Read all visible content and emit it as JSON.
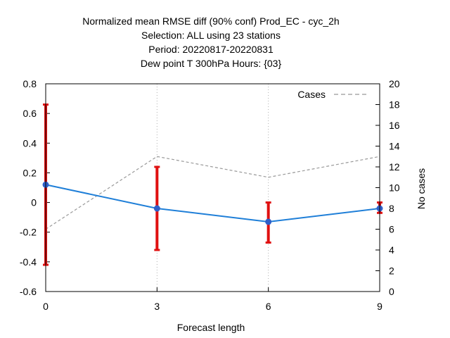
{
  "chart_data": {
    "type": "line",
    "title_lines": [
      "Normalized mean RMSE diff (90% conf) Prod_EC - cyc_2h",
      "Selection: ALL using    23 stations",
      "Period: 20220817-20220831",
      "Dew point T 300hPa   Hours: {03}"
    ],
    "xlabel": "Forecast length",
    "ylabel": "",
    "y2label": "No cases",
    "x": [
      0,
      3,
      6,
      9
    ],
    "xlim": [
      0,
      9
    ],
    "ylim": [
      -0.6,
      0.8
    ],
    "y2lim": [
      0,
      20
    ],
    "x_ticks": [
      0,
      3,
      6,
      9
    ],
    "x_tick_labels": [
      "0",
      "3",
      "6",
      "9"
    ],
    "y_ticks": [
      -0.6,
      -0.4,
      -0.2,
      0,
      0.2,
      0.4,
      0.6,
      0.8
    ],
    "y_tick_labels": [
      "-0.6",
      "-0.4",
      "-0.2",
      "0",
      "0.2",
      "0.4",
      "0.6",
      "0.8"
    ],
    "y2_ticks": [
      0,
      2,
      4,
      6,
      8,
      10,
      12,
      14,
      16,
      18,
      20
    ],
    "y2_tick_labels": [
      "0",
      "2",
      "4",
      "6",
      "8",
      "10",
      "12",
      "14",
      "16",
      "18",
      "20"
    ],
    "grid": {
      "x": true,
      "y": false
    },
    "legend_placement": "top-right",
    "series": [
      {
        "values": [
          0.12,
          -0.04,
          -0.13,
          -0.04
        ],
        "err_low": [
          -0.42,
          -0.32,
          -0.27,
          -0.07
        ],
        "err_high": [
          0.66,
          0.24,
          0.0,
          0.0
        ],
        "color": "#1f7fd8",
        "err_color": "#e01010",
        "axis": "left"
      },
      {
        "name": "Cases",
        "values": [
          6,
          13,
          11,
          13
        ],
        "color": "#999999",
        "style": "dashed",
        "axis": "right"
      }
    ]
  }
}
